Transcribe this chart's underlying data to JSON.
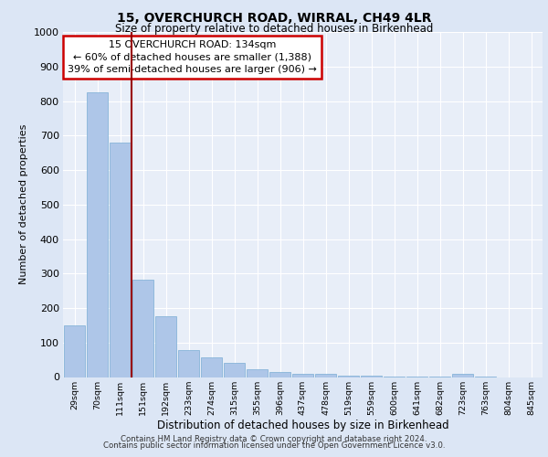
{
  "title1": "15, OVERCHURCH ROAD, WIRRAL, CH49 4LR",
  "title2": "Size of property relative to detached houses in Birkenhead",
  "xlabel": "Distribution of detached houses by size in Birkenhead",
  "ylabel": "Number of detached properties",
  "bar_labels": [
    "29sqm",
    "70sqm",
    "111sqm",
    "151sqm",
    "192sqm",
    "233sqm",
    "274sqm",
    "315sqm",
    "355sqm",
    "396sqm",
    "437sqm",
    "478sqm",
    "519sqm",
    "559sqm",
    "600sqm",
    "641sqm",
    "682sqm",
    "723sqm",
    "763sqm",
    "804sqm",
    "845sqm"
  ],
  "bar_values": [
    150,
    825,
    680,
    283,
    175,
    78,
    57,
    40,
    22,
    15,
    10,
    8,
    5,
    3,
    2,
    1,
    1,
    10,
    1,
    0,
    0
  ],
  "property_line_x": 2.5,
  "annotation_text": "15 OVERCHURCH ROAD: 134sqm\n← 60% of detached houses are smaller (1,388)\n39% of semi-detached houses are larger (906) →",
  "bar_color": "#aec6e8",
  "bar_edge_color": "#7aadd4",
  "line_color": "#990000",
  "annotation_box_color": "#ffffff",
  "annotation_box_edge": "#cc0000",
  "bg_color": "#dce6f5",
  "plot_bg_color": "#e8eef8",
  "grid_color": "#ffffff",
  "ylim": [
    0,
    1000
  ],
  "yticks": [
    0,
    100,
    200,
    300,
    400,
    500,
    600,
    700,
    800,
    900,
    1000
  ],
  "footer_line1": "Contains HM Land Registry data © Crown copyright and database right 2024.",
  "footer_line2": "Contains public sector information licensed under the Open Government Licence v3.0."
}
